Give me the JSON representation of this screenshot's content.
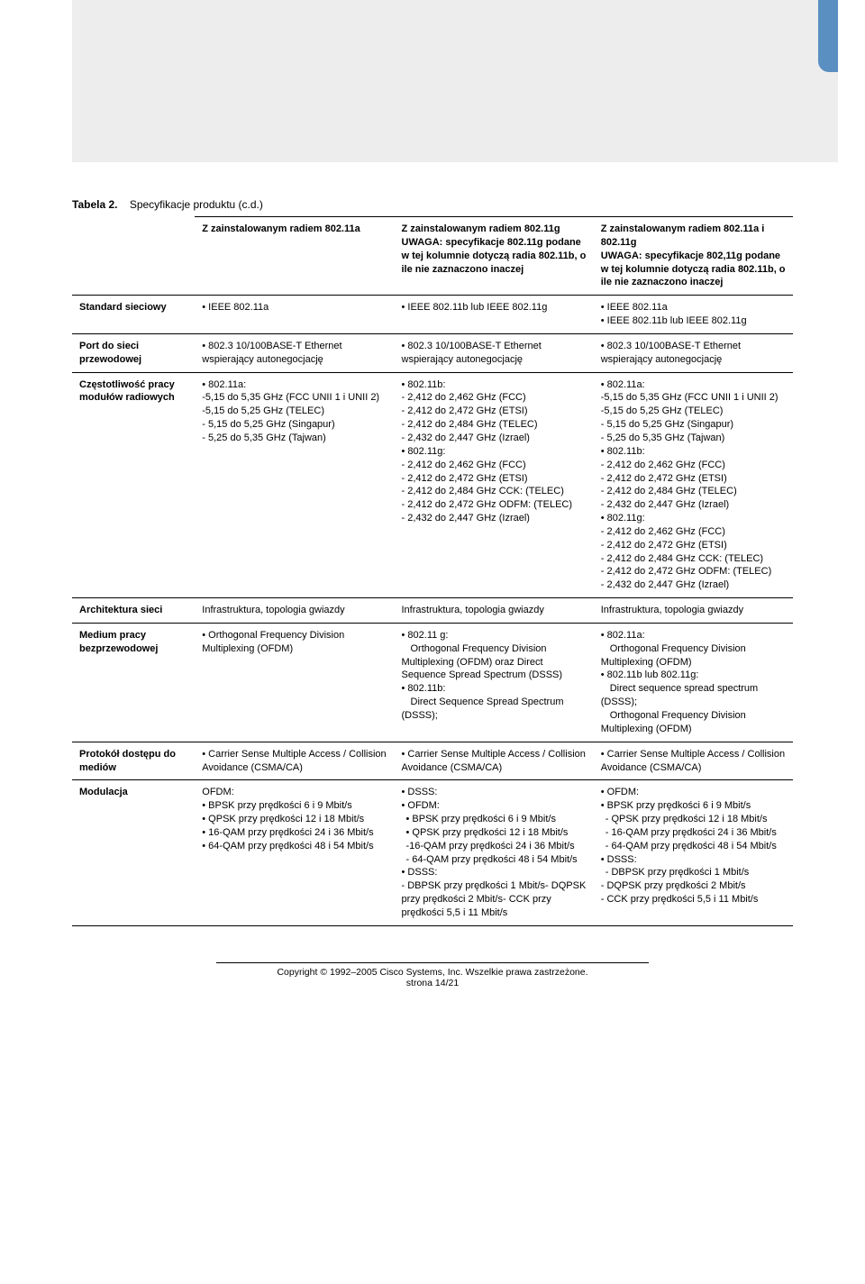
{
  "caption_bold": "Tabela 2.",
  "caption_rest": "Specyfikacje produktu (c.d.)",
  "header": {
    "blank": "",
    "col1": "Z zainstalowanym radiem 802.11a",
    "col2": "Z zainstalowanym radiem 802.11g\nUWAGA: specyfikacje 802.11g podane w tej kolumnie dotyczą radia 802.11b, o ile nie zaznaczono inaczej",
    "col3": "Z zainstalowanym radiem 802.11a i 802.11g\nUWAGA: specyfikacje 802,11g podane w tej kolumnie dotyczą radia 802.11b, o ile nie zaznaczono inaczej"
  },
  "rows": {
    "standard": {
      "label": "Standard sieciowy",
      "c1": "• IEEE 802.11a",
      "c2": "• IEEE 802.11b lub IEEE 802.11g",
      "c3": "• IEEE 802.11a\n• IEEE 802.11b lub IEEE 802.11g"
    },
    "port": {
      "label": "Port do sieci przewodowej",
      "c1": "• 802.3 10/100BASE-T Ethernet wspierający autonegocjację",
      "c2": "• 802.3 10/100BASE-T Ethernet wspierający autonegocjację",
      "c3": "• 802.3 10/100BASE-T Ethernet wspierający autonegocjację"
    },
    "freq": {
      "label": "Częstotliwość pracy modułów radiowych",
      "c1": "• 802.11a:\n-5,15 do 5,35 GHz (FCC UNII 1 i UNII 2)\n-5,15 do 5,25 GHz (TELEC)\n- 5,15 do 5,25 GHz (Singapur)\n- 5,25 do 5,35 GHz (Tajwan)",
      "c2": "• 802.11b:\n- 2,412 do 2,462 GHz (FCC)\n- 2,412 do 2,472 GHz (ETSI)\n- 2,412 do 2,484 GHz (TELEC)\n- 2,432 do 2,447 GHz (Izrael)\n• 802.11g:\n- 2,412 do 2,462 GHz (FCC)\n- 2,412 do 2,472 GHz (ETSI)\n- 2,412 do 2,484 GHz CCK: (TELEC)\n- 2,412 do 2,472 GHz ODFM: (TELEC)\n- 2,432 do 2,447 GHz (Izrael)",
      "c3": "• 802.11a:\n-5,15 do 5,35 GHz (FCC UNII 1 i UNII 2)\n-5,15 do 5,25 GHz (TELEC)\n- 5,15 do 5,25 GHz (Singapur)\n- 5,25 do 5,35 GHz (Tajwan)\n• 802.11b:\n- 2,412 do 2,462 GHz (FCC)\n- 2,412 do 2,472 GHz (ETSI)\n- 2,412 do 2,484 GHz (TELEC)\n- 2,432 do 2,447 GHz (Izrael)\n• 802.11g:\n- 2,412 do 2,462 GHz (FCC)\n- 2,412 do 2,472 GHz (ETSI)\n- 2,412 do 2,484 GHz CCK: (TELEC)\n- 2,412 do 2,472 GHz ODFM: (TELEC)\n- 2,432 do 2,447 GHz (Izrael)"
    },
    "arch": {
      "label": "Architektura sieci",
      "c1": "Infrastruktura, topologia gwiazdy",
      "c2": "Infrastruktura, topologia gwiazdy",
      "c3": "Infrastruktura, topologia gwiazdy"
    },
    "medium": {
      "label": "Medium pracy bezprzewodowej",
      "c1": "• Orthogonal Frequency Division Multiplexing (OFDM)",
      "c2": "• 802.11 g:\n  Orthogonal Frequency Division Multiplexing (OFDM) oraz Direct Sequence Spread Spectrum (DSSS)\n• 802.11b:\n  Direct Sequence Spread Spectrum (DSSS);",
      "c3": "• 802.11a:\n  Orthogonal Frequency Division Multiplexing (OFDM)\n• 802.11b lub 802.11g:\n  Direct sequence spread spectrum  (DSSS);\n  Orthogonal Frequency Division Multiplexing (OFDM)"
    },
    "protocol": {
      "label": "Protokół dostępu do mediów",
      "c1": "• Carrier Sense Multiple Access / Collision Avoidance (CSMA/CA)",
      "c2": "• Carrier Sense Multiple Access / Collision Avoidance (CSMA/CA)",
      "c3": "• Carrier Sense Multiple Access / Collision Avoidance (CSMA/CA)"
    },
    "mod": {
      "label": "Modulacja",
      "c1": "OFDM:\n• BPSK przy prędkości 6 i 9 Mbit/s\n• QPSK przy prędkości 12 i 18 Mbit/s\n• 16-QAM przy prędkości 24 i 36 Mbit/s\n• 64-QAM przy prędkości 48 i 54 Mbit/s",
      "c2": "• DSSS:\n• OFDM:\n • BPSK przy prędkości 6 i 9 Mbit/s\n • QPSK przy prędkości 12 i 18 Mbit/s\n -16-QAM przy prędkości 24 i 36 Mbit/s\n - 64-QAM przy prędkości 48 i 54 Mbit/s\n• DSSS:\n- DBPSK przy prędkości 1 Mbit/s- DQPSK przy prędkości 2 Mbit/s- CCK przy prędkości 5,5 i 11 Mbit/s",
      "c3": "• OFDM:\n• BPSK przy prędkości 6 i 9 Mbit/s\n - QPSK przy prędkości 12 i 18 Mbit/s\n - 16-QAM przy prędkości 24 i 36 Mbit/s\n - 64-QAM przy prędkości 48 i 54 Mbit/s\n• DSSS:\n - DBPSK przy prędkości 1 Mbit/s\n- DQPSK przy prędkości 2 Mbit/s\n- CCK przy prędkości 5,5 i 11 Mbit/s"
    }
  },
  "footer": {
    "copyright": "Copyright © 1992–2005 Cisco Systems, Inc. Wszelkie prawa zastrzeżone.",
    "page": "strona 14/21"
  }
}
